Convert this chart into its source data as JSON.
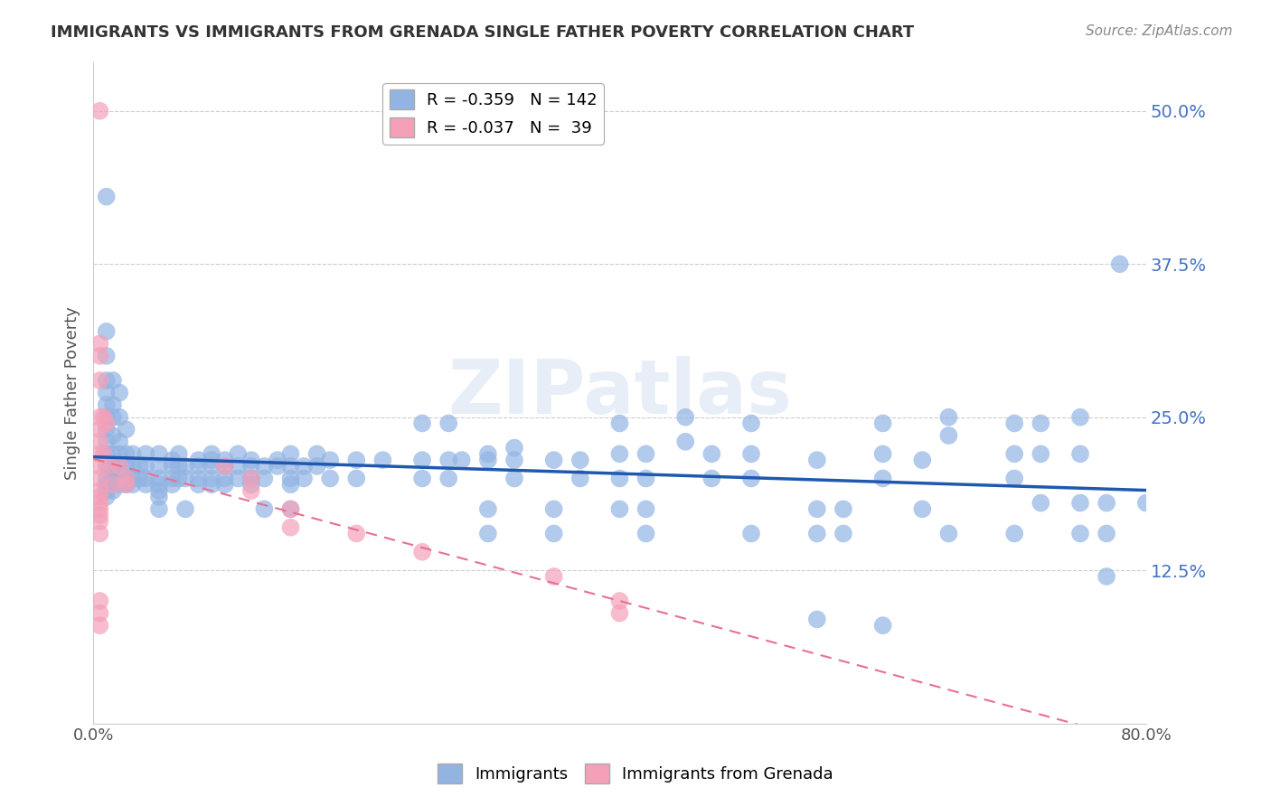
{
  "title": "IMMIGRANTS VS IMMIGRANTS FROM GRENADA SINGLE FATHER POVERTY CORRELATION CHART",
  "source": "Source: ZipAtlas.com",
  "ylabel": "Single Father Poverty",
  "xlabel_ticks": [
    "0.0%",
    "80.0%"
  ],
  "ytick_labels": [
    "12.5%",
    "25.0%",
    "37.5%",
    "50.0%"
  ],
  "ytick_values": [
    0.125,
    0.25,
    0.375,
    0.5
  ],
  "xlim": [
    0.0,
    0.8
  ],
  "ylim": [
    0.0,
    0.54
  ],
  "legend1_R": "-0.359",
  "legend1_N": "142",
  "legend2_R": "-0.037",
  "legend2_N": " 39",
  "blue_color": "#92b4e3",
  "pink_color": "#f4a0b8",
  "blue_line_color": "#2058b0",
  "pink_line_color": "#e87090",
  "watermark": "ZIPatlas",
  "blue_scatter": [
    [
      0.01,
      0.43
    ],
    [
      0.01,
      0.32
    ],
    [
      0.01,
      0.3
    ],
    [
      0.01,
      0.28
    ],
    [
      0.01,
      0.27
    ],
    [
      0.01,
      0.26
    ],
    [
      0.01,
      0.25
    ],
    [
      0.01,
      0.24
    ],
    [
      0.01,
      0.23
    ],
    [
      0.01,
      0.22
    ],
    [
      0.01,
      0.21
    ],
    [
      0.01,
      0.2
    ],
    [
      0.01,
      0.195
    ],
    [
      0.01,
      0.19
    ],
    [
      0.01,
      0.185
    ],
    [
      0.015,
      0.28
    ],
    [
      0.015,
      0.26
    ],
    [
      0.015,
      0.25
    ],
    [
      0.015,
      0.235
    ],
    [
      0.015,
      0.22
    ],
    [
      0.015,
      0.21
    ],
    [
      0.015,
      0.2
    ],
    [
      0.015,
      0.195
    ],
    [
      0.015,
      0.19
    ],
    [
      0.02,
      0.27
    ],
    [
      0.02,
      0.25
    ],
    [
      0.02,
      0.23
    ],
    [
      0.02,
      0.22
    ],
    [
      0.02,
      0.21
    ],
    [
      0.02,
      0.205
    ],
    [
      0.02,
      0.2
    ],
    [
      0.02,
      0.195
    ],
    [
      0.025,
      0.24
    ],
    [
      0.025,
      0.22
    ],
    [
      0.025,
      0.21
    ],
    [
      0.025,
      0.2
    ],
    [
      0.025,
      0.195
    ],
    [
      0.03,
      0.22
    ],
    [
      0.03,
      0.21
    ],
    [
      0.03,
      0.2
    ],
    [
      0.03,
      0.195
    ],
    [
      0.035,
      0.21
    ],
    [
      0.035,
      0.2
    ],
    [
      0.04,
      0.22
    ],
    [
      0.04,
      0.21
    ],
    [
      0.04,
      0.2
    ],
    [
      0.04,
      0.195
    ],
    [
      0.05,
      0.22
    ],
    [
      0.05,
      0.21
    ],
    [
      0.05,
      0.2
    ],
    [
      0.05,
      0.195
    ],
    [
      0.05,
      0.19
    ],
    [
      0.05,
      0.185
    ],
    [
      0.05,
      0.175
    ],
    [
      0.06,
      0.215
    ],
    [
      0.06,
      0.21
    ],
    [
      0.06,
      0.2
    ],
    [
      0.06,
      0.195
    ],
    [
      0.065,
      0.22
    ],
    [
      0.065,
      0.21
    ],
    [
      0.065,
      0.2
    ],
    [
      0.07,
      0.21
    ],
    [
      0.07,
      0.2
    ],
    [
      0.07,
      0.175
    ],
    [
      0.08,
      0.215
    ],
    [
      0.08,
      0.21
    ],
    [
      0.08,
      0.2
    ],
    [
      0.08,
      0.195
    ],
    [
      0.09,
      0.22
    ],
    [
      0.09,
      0.215
    ],
    [
      0.09,
      0.21
    ],
    [
      0.09,
      0.2
    ],
    [
      0.09,
      0.195
    ],
    [
      0.1,
      0.215
    ],
    [
      0.1,
      0.21
    ],
    [
      0.1,
      0.2
    ],
    [
      0.1,
      0.195
    ],
    [
      0.11,
      0.22
    ],
    [
      0.11,
      0.21
    ],
    [
      0.11,
      0.2
    ],
    [
      0.12,
      0.215
    ],
    [
      0.12,
      0.21
    ],
    [
      0.12,
      0.2
    ],
    [
      0.12,
      0.195
    ],
    [
      0.13,
      0.21
    ],
    [
      0.13,
      0.2
    ],
    [
      0.13,
      0.175
    ],
    [
      0.14,
      0.215
    ],
    [
      0.14,
      0.21
    ],
    [
      0.15,
      0.22
    ],
    [
      0.15,
      0.21
    ],
    [
      0.15,
      0.2
    ],
    [
      0.15,
      0.195
    ],
    [
      0.15,
      0.175
    ],
    [
      0.16,
      0.21
    ],
    [
      0.16,
      0.2
    ],
    [
      0.17,
      0.22
    ],
    [
      0.17,
      0.21
    ],
    [
      0.18,
      0.215
    ],
    [
      0.18,
      0.2
    ],
    [
      0.2,
      0.215
    ],
    [
      0.2,
      0.2
    ],
    [
      0.22,
      0.215
    ],
    [
      0.25,
      0.245
    ],
    [
      0.25,
      0.215
    ],
    [
      0.25,
      0.2
    ],
    [
      0.27,
      0.245
    ],
    [
      0.27,
      0.215
    ],
    [
      0.27,
      0.2
    ],
    [
      0.28,
      0.215
    ],
    [
      0.3,
      0.22
    ],
    [
      0.3,
      0.215
    ],
    [
      0.3,
      0.175
    ],
    [
      0.3,
      0.155
    ],
    [
      0.32,
      0.225
    ],
    [
      0.32,
      0.215
    ],
    [
      0.32,
      0.2
    ],
    [
      0.35,
      0.215
    ],
    [
      0.35,
      0.175
    ],
    [
      0.35,
      0.155
    ],
    [
      0.37,
      0.215
    ],
    [
      0.37,
      0.2
    ],
    [
      0.4,
      0.245
    ],
    [
      0.4,
      0.22
    ],
    [
      0.4,
      0.2
    ],
    [
      0.4,
      0.175
    ],
    [
      0.42,
      0.22
    ],
    [
      0.42,
      0.2
    ],
    [
      0.42,
      0.175
    ],
    [
      0.42,
      0.155
    ],
    [
      0.45,
      0.25
    ],
    [
      0.45,
      0.23
    ],
    [
      0.47,
      0.22
    ],
    [
      0.47,
      0.2
    ],
    [
      0.5,
      0.245
    ],
    [
      0.5,
      0.22
    ],
    [
      0.5,
      0.2
    ],
    [
      0.5,
      0.155
    ],
    [
      0.55,
      0.215
    ],
    [
      0.55,
      0.175
    ],
    [
      0.55,
      0.155
    ],
    [
      0.55,
      0.085
    ],
    [
      0.57,
      0.175
    ],
    [
      0.57,
      0.155
    ],
    [
      0.6,
      0.245
    ],
    [
      0.6,
      0.22
    ],
    [
      0.6,
      0.2
    ],
    [
      0.6,
      0.08
    ],
    [
      0.63,
      0.215
    ],
    [
      0.63,
      0.175
    ],
    [
      0.65,
      0.25
    ],
    [
      0.65,
      0.235
    ],
    [
      0.65,
      0.155
    ],
    [
      0.7,
      0.245
    ],
    [
      0.7,
      0.22
    ],
    [
      0.7,
      0.2
    ],
    [
      0.7,
      0.155
    ],
    [
      0.72,
      0.245
    ],
    [
      0.72,
      0.22
    ],
    [
      0.72,
      0.18
    ],
    [
      0.75,
      0.25
    ],
    [
      0.75,
      0.22
    ],
    [
      0.75,
      0.18
    ],
    [
      0.75,
      0.155
    ],
    [
      0.77,
      0.18
    ],
    [
      0.77,
      0.155
    ],
    [
      0.77,
      0.12
    ],
    [
      0.78,
      0.375
    ],
    [
      0.8,
      0.18
    ]
  ],
  "pink_scatter": [
    [
      0.005,
      0.5
    ],
    [
      0.005,
      0.31
    ],
    [
      0.005,
      0.3
    ],
    [
      0.005,
      0.28
    ],
    [
      0.005,
      0.25
    ],
    [
      0.005,
      0.24
    ],
    [
      0.005,
      0.23
    ],
    [
      0.005,
      0.22
    ],
    [
      0.005,
      0.21
    ],
    [
      0.005,
      0.2
    ],
    [
      0.005,
      0.19
    ],
    [
      0.005,
      0.185
    ],
    [
      0.005,
      0.18
    ],
    [
      0.005,
      0.175
    ],
    [
      0.005,
      0.17
    ],
    [
      0.005,
      0.165
    ],
    [
      0.005,
      0.155
    ],
    [
      0.005,
      0.1
    ],
    [
      0.005,
      0.09
    ],
    [
      0.005,
      0.08
    ],
    [
      0.008,
      0.25
    ],
    [
      0.008,
      0.22
    ],
    [
      0.01,
      0.245
    ],
    [
      0.012,
      0.21
    ],
    [
      0.015,
      0.195
    ],
    [
      0.02,
      0.21
    ],
    [
      0.025,
      0.2
    ],
    [
      0.025,
      0.195
    ],
    [
      0.1,
      0.21
    ],
    [
      0.12,
      0.2
    ],
    [
      0.12,
      0.19
    ],
    [
      0.15,
      0.175
    ],
    [
      0.15,
      0.16
    ],
    [
      0.2,
      0.155
    ],
    [
      0.25,
      0.14
    ],
    [
      0.35,
      0.12
    ],
    [
      0.4,
      0.1
    ],
    [
      0.4,
      0.09
    ]
  ]
}
